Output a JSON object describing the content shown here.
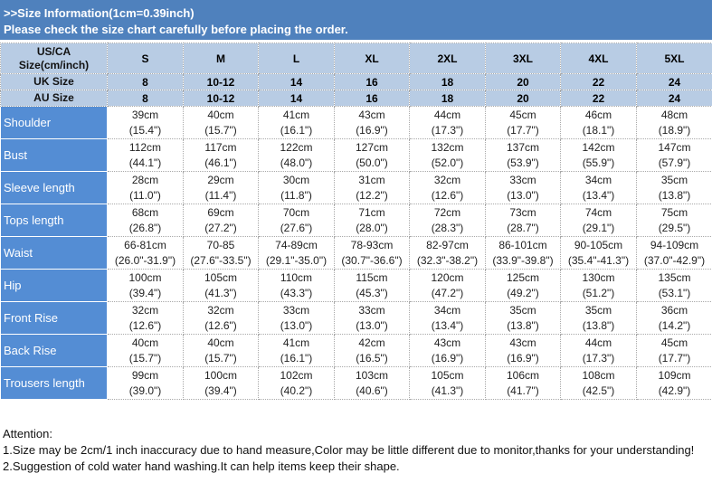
{
  "banner": {
    "line1": ">>Size Information(1cm=0.39inch)",
    "line2": "Please check the size chart carefully before placing the order."
  },
  "table": {
    "header_rows": [
      {
        "label_line1": "US/CA",
        "label_line2": "Size(cm/inch)",
        "values": [
          "S",
          "M",
          "L",
          "XL",
          "2XL",
          "3XL",
          "4XL",
          "5XL"
        ]
      },
      {
        "label": "UK Size",
        "values": [
          "8",
          "10-12",
          "14",
          "16",
          "18",
          "20",
          "22",
          "24"
        ]
      },
      {
        "label": "AU Size",
        "values": [
          "8",
          "10-12",
          "14",
          "16",
          "18",
          "20",
          "22",
          "24"
        ]
      }
    ],
    "rows": [
      {
        "label": "Shoulder",
        "cm": [
          "39cm",
          "40cm",
          "41cm",
          "43cm",
          "44cm",
          "45cm",
          "46cm",
          "48cm"
        ],
        "inch": [
          "(15.4\")",
          "(15.7\")",
          "(16.1\")",
          "(16.9\")",
          "(17.3\")",
          "(17.7\")",
          "(18.1\")",
          "(18.9\")"
        ]
      },
      {
        "label": "Bust",
        "cm": [
          "112cm",
          "117cm",
          "122cm",
          "127cm",
          "132cm",
          "137cm",
          "142cm",
          "147cm"
        ],
        "inch": [
          "(44.1\")",
          "(46.1\")",
          "(48.0\")",
          "(50.0\")",
          "(52.0\")",
          "(53.9\")",
          "(55.9\")",
          "(57.9\")"
        ]
      },
      {
        "label": "Sleeve length",
        "cm": [
          "28cm",
          "29cm",
          "30cm",
          "31cm",
          "32cm",
          "33cm",
          "34cm",
          "35cm"
        ],
        "inch": [
          "(11.0\")",
          "(11.4\")",
          "(11.8\")",
          "(12.2\")",
          "(12.6\")",
          "(13.0\")",
          "(13.4\")",
          "(13.8\")"
        ]
      },
      {
        "label": "Tops length",
        "cm": [
          "68cm",
          "69cm",
          "70cm",
          "71cm",
          "72cm",
          "73cm",
          "74cm",
          "75cm"
        ],
        "inch": [
          "(26.8\")",
          "(27.2\")",
          "(27.6\")",
          "(28.0\")",
          "(28.3\")",
          "(28.7\")",
          "(29.1\")",
          "(29.5\")"
        ]
      },
      {
        "label": "Waist",
        "cm": [
          "66-81cm",
          "70-85",
          "74-89cm",
          "78-93cm",
          "82-97cm",
          "86-101cm",
          "90-105cm",
          "94-109cm"
        ],
        "inch": [
          "(26.0\"-31.9\")",
          "(27.6\"-33.5\")",
          "(29.1\"-35.0\")",
          "(30.7\"-36.6\")",
          "(32.3\"-38.2\")",
          "(33.9\"-39.8\")",
          "(35.4\"-41.3\")",
          "(37.0\"-42.9\")"
        ]
      },
      {
        "label": "Hip",
        "cm": [
          "100cm",
          "105cm",
          "110cm",
          "115cm",
          "120cm",
          "125cm",
          "130cm",
          "135cm"
        ],
        "inch": [
          "(39.4\")",
          "(41.3\")",
          "(43.3\")",
          "(45.3\")",
          "(47.2\")",
          "(49.2\")",
          "(51.2\")",
          "(53.1\")"
        ]
      },
      {
        "label": "Front Rise",
        "cm": [
          "32cm",
          "32cm",
          "33cm",
          "33cm",
          "34cm",
          "35cm",
          "35cm",
          "36cm"
        ],
        "inch": [
          "(12.6\")",
          "(12.6\")",
          "(13.0\")",
          "(13.0\")",
          "(13.4\")",
          "(13.8\")",
          "(13.8\")",
          "(14.2\")"
        ]
      },
      {
        "label": "Back Rise",
        "cm": [
          "40cm",
          "40cm",
          "41cm",
          "42cm",
          "43cm",
          "43cm",
          "44cm",
          "45cm"
        ],
        "inch": [
          "(15.7\")",
          "(15.7\")",
          "(16.1\")",
          "(16.5\")",
          "(16.9\")",
          "(16.9\")",
          "(17.3\")",
          "(17.7\")"
        ]
      },
      {
        "label": "Trousers length",
        "cm": [
          "99cm",
          "100cm",
          "102cm",
          "103cm",
          "105cm",
          "106cm",
          "108cm",
          "109cm"
        ],
        "inch": [
          "(39.0\")",
          "(39.4\")",
          "(40.2\")",
          "(40.6\")",
          "(41.3\")",
          "(41.7\")",
          "(42.5\")",
          "(42.9\")"
        ]
      }
    ]
  },
  "notes": {
    "title": "Attention:",
    "line1": "1.Size may be 2cm/1 inch inaccuracy due to hand measure,Color may be little different due to monitor,thanks for your understanding!",
    "line2": "2.Suggestion of cold water hand washing.It can help items keep their shape."
  },
  "colors": {
    "banner_bg": "#4f81bd",
    "header_bg": "#b8cce4",
    "row_label_bg": "#548dd4"
  }
}
